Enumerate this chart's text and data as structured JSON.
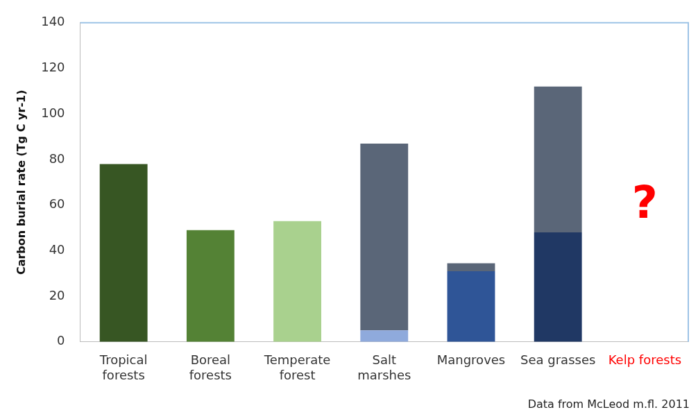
{
  "chart_data": {
    "type": "bar",
    "ylabel": "Carbon burial rate (Tg C yr-1)",
    "categories": [
      "Tropical\nforests",
      "Boreal\nforests",
      "Temperate\nforest",
      "Salt\nmarshes",
      "Mangroves",
      "Sea grasses",
      "Kelp forests"
    ],
    "stacked": true,
    "series": [
      {
        "colors": [
          "#375623",
          "#548235",
          "#a9d18e",
          "#8faadc",
          "#2f5597",
          "#203864",
          "#ff0000"
        ],
        "values": [
          78,
          49,
          53,
          5,
          31,
          48,
          null
        ]
      },
      {
        "color": "#5a6678",
        "values": [
          null,
          null,
          null,
          82,
          3.5,
          64,
          null
        ]
      }
    ],
    "ylim": [
      0,
      140
    ],
    "yticks": [
      0,
      20,
      40,
      60,
      80,
      100,
      120,
      140
    ],
    "grid": false,
    "annotations": [
      "?",
      "Data from McLeod m.fl. 2011"
    ]
  }
}
